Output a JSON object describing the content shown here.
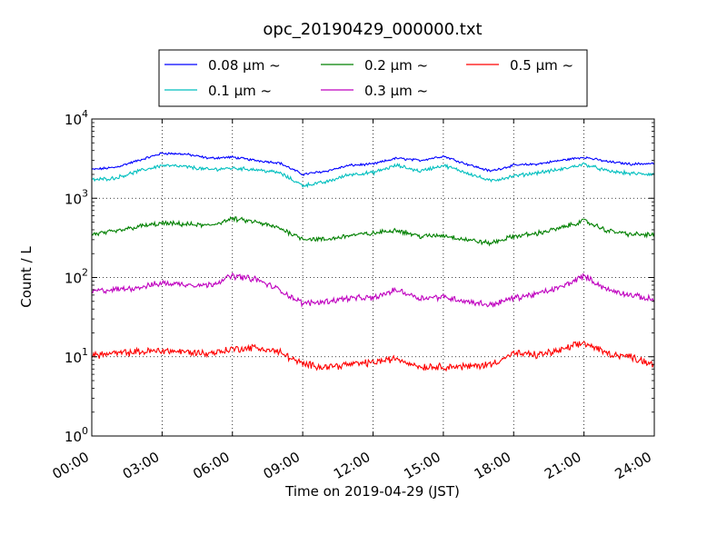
{
  "chart_data": {
    "type": "line",
    "title": "opc_20190429_000000.txt",
    "xlabel": "Time on 2019-04-29 (JST)",
    "ylabel": "Count / L",
    "y_scale": "log",
    "ylim": [
      1,
      10000
    ],
    "y_ticks": [
      {
        "value": 1,
        "mantissa": "10",
        "exp": "0"
      },
      {
        "value": 10,
        "mantissa": "10",
        "exp": "1"
      },
      {
        "value": 100,
        "mantissa": "10",
        "exp": "2"
      },
      {
        "value": 1000,
        "mantissa": "10",
        "exp": "3"
      },
      {
        "value": 10000,
        "mantissa": "10",
        "exp": "4"
      }
    ],
    "xlim_hours": [
      0,
      24
    ],
    "x_tick_hours": [
      0,
      3,
      6,
      9,
      12,
      15,
      18,
      21,
      24
    ],
    "x_tick_labels": [
      "00:00",
      "03:00",
      "06:00",
      "09:00",
      "12:00",
      "15:00",
      "18:00",
      "21:00",
      "24:00"
    ],
    "grid": true,
    "legend_position": "top-center",
    "x_hours": [
      0,
      1,
      2,
      3,
      4,
      5,
      6,
      7,
      8,
      9,
      10,
      11,
      12,
      13,
      14,
      15,
      16,
      17,
      18,
      19,
      20,
      21,
      22,
      23,
      24
    ],
    "series": [
      {
        "name": "0.08 μm ~",
        "color": "#0000ff",
        "values": [
          2300,
          2450,
          3000,
          3700,
          3600,
          3200,
          3300,
          3000,
          2800,
          2000,
          2200,
          2600,
          2700,
          3200,
          3000,
          3400,
          2700,
          2200,
          2600,
          2700,
          3000,
          3300,
          2900,
          2700,
          2750
        ]
      },
      {
        "name": "0.1 μm ~",
        "color": "#00bfbf",
        "values": [
          1700,
          1800,
          2200,
          2600,
          2500,
          2300,
          2400,
          2300,
          2100,
          1450,
          1600,
          2000,
          2100,
          2600,
          2200,
          2600,
          2100,
          1650,
          1900,
          2100,
          2300,
          2700,
          2200,
          2050,
          2000
        ]
      },
      {
        "name": "0.2 μm ~",
        "color": "#008000",
        "values": [
          350,
          380,
          440,
          480,
          470,
          450,
          550,
          500,
          420,
          310,
          300,
          340,
          360,
          400,
          330,
          340,
          300,
          270,
          330,
          360,
          420,
          520,
          390,
          350,
          345
        ]
      },
      {
        "name": "0.3 μm ~",
        "color": "#bf00bf",
        "values": [
          67,
          70,
          75,
          85,
          82,
          80,
          105,
          95,
          70,
          47,
          50,
          55,
          55,
          70,
          55,
          57,
          50,
          45,
          55,
          62,
          75,
          105,
          70,
          60,
          52
        ]
      },
      {
        "name": "0.5 μm ~",
        "color": "#ff0000",
        "values": [
          10.5,
          11,
          11.5,
          12,
          11.5,
          11,
          12.5,
          13,
          11.5,
          8,
          7.5,
          8,
          8.5,
          9.5,
          7.5,
          7.5,
          7.5,
          8,
          11,
          10.5,
          12,
          15,
          11,
          10,
          8
        ]
      }
    ]
  }
}
